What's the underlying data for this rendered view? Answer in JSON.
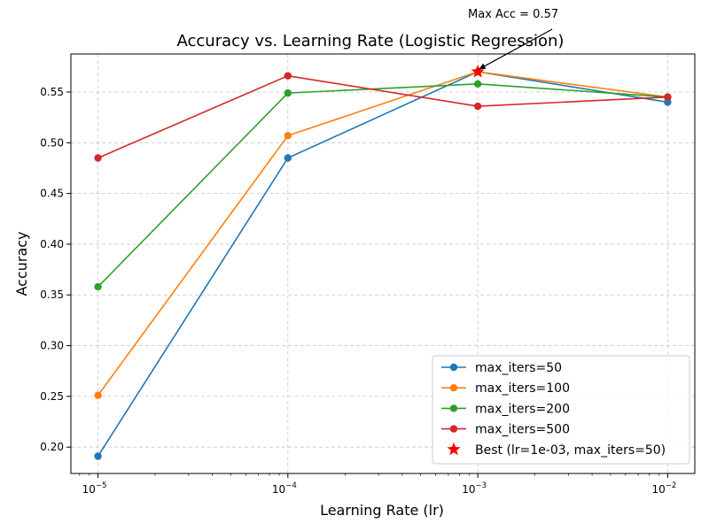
{
  "chart_data": {
    "type": "line",
    "title": "Accuracy vs. Learning Rate (Logistic Regression)",
    "xlabel": "Learning Rate (lr)",
    "ylabel": "Accuracy",
    "xscale": "log",
    "x": [
      1e-05,
      0.0001,
      0.001,
      0.01
    ],
    "xlim": [
      7.2e-06,
      0.0139
    ],
    "ylim": [
      0.174,
      0.5875
    ],
    "x_ticks": [
      {
        "value": 1e-05,
        "base": "10",
        "exp": "−5"
      },
      {
        "value": 0.0001,
        "base": "10",
        "exp": "−4"
      },
      {
        "value": 0.001,
        "base": "10",
        "exp": "−3"
      },
      {
        "value": 0.01,
        "base": "10",
        "exp": "−2"
      }
    ],
    "y_ticks": [
      {
        "value": 0.2,
        "label": "0.20"
      },
      {
        "value": 0.25,
        "label": "0.25"
      },
      {
        "value": 0.3,
        "label": "0.30"
      },
      {
        "value": 0.35,
        "label": "0.35"
      },
      {
        "value": 0.4,
        "label": "0.40"
      },
      {
        "value": 0.45,
        "label": "0.45"
      },
      {
        "value": 0.5,
        "label": "0.50"
      },
      {
        "value": 0.55,
        "label": "0.55"
      }
    ],
    "grid": true,
    "legend_position": "lower-right",
    "series": [
      {
        "name": "max_iters=50",
        "color": "#1f77b4",
        "values": [
          0.191,
          0.485,
          0.57,
          0.54
        ]
      },
      {
        "name": "max_iters=100",
        "color": "#ff7f0e",
        "values": [
          0.251,
          0.507,
          0.57,
          0.545
        ]
      },
      {
        "name": "max_iters=200",
        "color": "#2ca02c",
        "values": [
          0.358,
          0.549,
          0.558,
          0.545
        ]
      },
      {
        "name": "max_iters=500",
        "color": "#d62728",
        "values": [
          0.485,
          0.566,
          0.536,
          0.545
        ]
      }
    ],
    "best": {
      "label": "Best (lr=1e-03, max_iters=50)",
      "x": 0.001,
      "y": 0.57,
      "color": "#ff0000",
      "marker": "star"
    },
    "annotation": {
      "text": "Max Acc = 0.57"
    }
  }
}
